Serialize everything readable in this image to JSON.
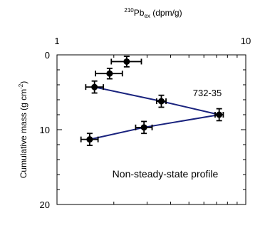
{
  "chart_data": {
    "type": "scatter",
    "title": "",
    "xlabel": {
      "iso_mass": "210",
      "iso_symbol": "Pb",
      "subscript": "ex",
      "unit": " (dpm/g)"
    },
    "ylabel": {
      "prefix": "Cumulative mass (g cm",
      "sup": "-2",
      "suffix": ")"
    },
    "x_scale": "log",
    "xlim": [
      1,
      10
    ],
    "ylim": [
      0,
      20
    ],
    "y_inverted": true,
    "x_axis_position": "top",
    "x_ticks": [
      {
        "value": 1,
        "label": "1"
      },
      {
        "value": 10,
        "label": "10"
      }
    ],
    "y_ticks": [
      {
        "value": 0,
        "label": "0"
      },
      {
        "value": 10,
        "label": "10"
      },
      {
        "value": 20,
        "label": "20"
      }
    ],
    "core_label": "732-35",
    "annotation": "Non-steady-state profile",
    "grid": false,
    "colors": {
      "line": "#1a237e",
      "marker": "#000000"
    },
    "points": [
      {
        "x": 2.34,
        "y": 0.9,
        "xerr": [
          0.4,
          0.46
        ],
        "yerr": 0.7,
        "connected": false
      },
      {
        "x": 1.9,
        "y": 2.5,
        "xerr": [
          0.3,
          0.32
        ],
        "yerr": 0.7,
        "connected": false
      },
      {
        "x": 1.58,
        "y": 4.3,
        "xerr": [
          0.16,
          0.18
        ],
        "yerr": 0.8,
        "connected": true
      },
      {
        "x": 3.57,
        "y": 6.2,
        "xerr": [
          0.2,
          0.21
        ],
        "yerr": 0.8,
        "connected": true
      },
      {
        "x": 7.23,
        "y": 8.0,
        "xerr": [
          0.35,
          0.37
        ],
        "yerr": 0.8,
        "connected": true
      },
      {
        "x": 2.89,
        "y": 9.7,
        "xerr": [
          0.28,
          0.3
        ],
        "yerr": 0.8,
        "connected": true
      },
      {
        "x": 1.49,
        "y": 11.3,
        "xerr": [
          0.15,
          0.16
        ],
        "yerr": 0.8,
        "connected": true
      }
    ]
  }
}
